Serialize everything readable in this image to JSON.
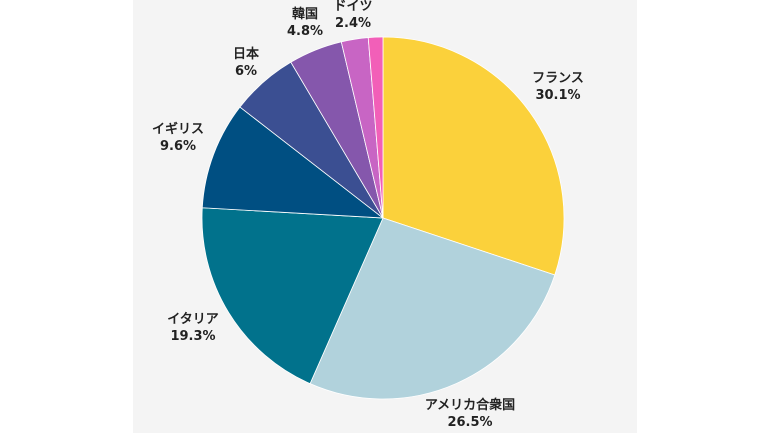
{
  "chart_data": {
    "type": "pie",
    "start_angle_deg": 0,
    "direction": "clockwise",
    "legend": "none",
    "slices": [
      {
        "name": "フランス",
        "value": 30.1,
        "value_label": "30.1%",
        "color": "#fbd13b"
      },
      {
        "name": "アメリカ合衆国",
        "value": 26.5,
        "value_label": "26.5%",
        "color": "#b1d2dc"
      },
      {
        "name": "イタリア",
        "value": 19.3,
        "value_label": "19.3%",
        "color": "#01728c"
      },
      {
        "name": "イギリス",
        "value": 9.6,
        "value_label": "9.6%",
        "color": "#004f82"
      },
      {
        "name": "日本",
        "value": 6,
        "value_label": "6%",
        "color": "#3b4f92"
      },
      {
        "name": "韓国",
        "value": 4.8,
        "value_label": "4.8%",
        "color": "#8557ac"
      },
      {
        "name": "ドイツ",
        "value": 2.4,
        "value_label": "2.4%",
        "color": "#c865c4"
      },
      {
        "name": "",
        "value": 1.3,
        "value_label": "",
        "color": "#f25fb8"
      }
    ]
  }
}
